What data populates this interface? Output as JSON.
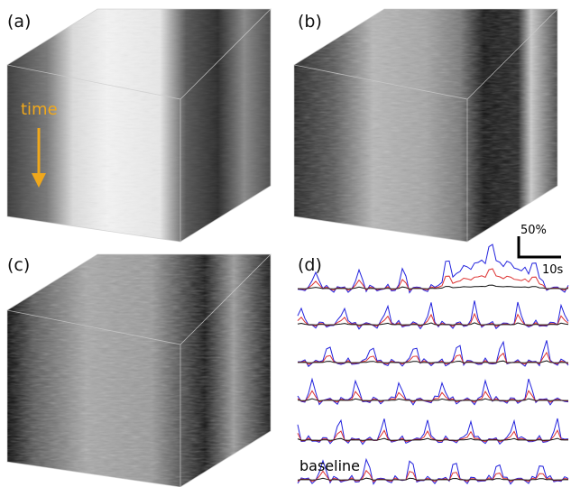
{
  "panels": [
    {
      "label": "(a)",
      "annotation": "time"
    },
    {
      "label": "(b)"
    },
    {
      "label": "(c)"
    },
    {
      "label": "(d)",
      "scale_bar": {
        "vertical": "50%",
        "horizontal": "10s"
      },
      "trace_label": "baseline"
    }
  ]
}
